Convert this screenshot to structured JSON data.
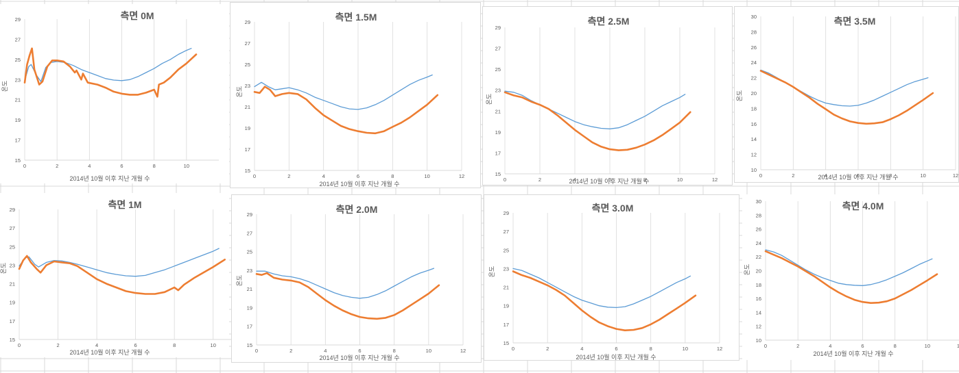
{
  "sheet": {
    "gridline_color": "#d9d9d9",
    "background": "#ffffff"
  },
  "colors": {
    "series_blue": "#5b9bd5",
    "series_orange": "#ed7d31",
    "text": "#595959",
    "grid": "#d9d9d9"
  },
  "chart_data": [
    {
      "type": "line",
      "title": "측면 0M",
      "xlabel": "2014년 10월 이후 지난 개월 수",
      "ylabel": "온도",
      "xlim": [
        0,
        12
      ],
      "ylim": [
        15,
        29
      ],
      "xticks": [
        0,
        2,
        4,
        6,
        8,
        10
      ],
      "yticks": [
        15,
        17,
        19,
        21,
        23,
        25,
        27,
        29
      ],
      "grid": true,
      "series": [
        {
          "color": "#5b9bd5",
          "x": [
            0,
            0.25,
            0.4,
            0.7,
            1.0,
            1.3,
            1.6,
            2.0,
            2.5,
            3.0,
            3.5,
            4.0,
            4.5,
            5.0,
            5.5,
            6.0,
            6.5,
            7.0,
            7.5,
            8.0,
            8.5,
            9.0,
            9.5,
            10.0,
            10.3
          ],
          "y": [
            22.9,
            24.3,
            24.5,
            23.5,
            22.8,
            24.2,
            24.7,
            24.8,
            24.7,
            24.4,
            24.0,
            23.7,
            23.4,
            23.1,
            22.95,
            22.9,
            23.0,
            23.3,
            23.7,
            24.1,
            24.6,
            25.0,
            25.5,
            25.9,
            26.1
          ]
        },
        {
          "color": "#ed7d31",
          "x": [
            0,
            0.15,
            0.3,
            0.45,
            0.6,
            0.9,
            1.1,
            1.4,
            1.7,
            2.0,
            2.4,
            2.8,
            3.1,
            3.2,
            3.5,
            3.6,
            3.9,
            4.5,
            5.0,
            5.5,
            6.0,
            6.5,
            7.0,
            7.5,
            8.0,
            8.2,
            8.3,
            8.6,
            9.0,
            9.5,
            10.0,
            10.6
          ],
          "y": [
            22.7,
            24.5,
            25.4,
            26.1,
            24.0,
            22.5,
            22.8,
            24.3,
            24.9,
            24.9,
            24.8,
            24.3,
            23.7,
            23.9,
            23.0,
            23.6,
            22.7,
            22.5,
            22.2,
            21.8,
            21.6,
            21.5,
            21.5,
            21.7,
            22.0,
            21.3,
            22.5,
            22.7,
            23.2,
            24.0,
            24.6,
            25.5
          ]
        }
      ]
    },
    {
      "type": "line",
      "title": "측면 1.5M",
      "xlabel": "2014년 10월 이후 지난 개월 수",
      "ylabel": "온도",
      "xlim": [
        0,
        12
      ],
      "ylim": [
        15,
        29
      ],
      "xticks": [
        0,
        2,
        4,
        6,
        8,
        10,
        12
      ],
      "yticks": [
        15,
        17,
        19,
        21,
        23,
        25,
        27,
        29
      ],
      "grid": true,
      "series": [
        {
          "color": "#5b9bd5",
          "x": [
            0,
            0.4,
            0.8,
            1.2,
            1.6,
            2.0,
            2.5,
            3.0,
            3.5,
            4.0,
            4.5,
            5.0,
            5.5,
            6.0,
            6.5,
            7.0,
            7.5,
            8.0,
            8.5,
            9.0,
            9.5,
            10.0,
            10.3
          ],
          "y": [
            22.9,
            23.3,
            22.9,
            22.6,
            22.7,
            22.8,
            22.6,
            22.3,
            21.9,
            21.6,
            21.3,
            21.0,
            20.8,
            20.75,
            20.9,
            21.2,
            21.6,
            22.1,
            22.6,
            23.1,
            23.5,
            23.8,
            24.0
          ]
        },
        {
          "color": "#ed7d31",
          "x": [
            0,
            0.3,
            0.6,
            0.9,
            1.2,
            1.6,
            2.0,
            2.5,
            3.0,
            3.5,
            4.0,
            4.5,
            5.0,
            5.5,
            6.0,
            6.5,
            7.0,
            7.5,
            8.0,
            8.5,
            9.0,
            9.5,
            10.0,
            10.6
          ],
          "y": [
            22.4,
            22.3,
            22.9,
            22.6,
            22.0,
            22.2,
            22.3,
            22.2,
            21.7,
            20.9,
            20.2,
            19.7,
            19.2,
            18.9,
            18.7,
            18.55,
            18.5,
            18.7,
            19.1,
            19.5,
            20.0,
            20.6,
            21.2,
            22.1
          ]
        }
      ]
    },
    {
      "type": "line",
      "title": "측면 2.5M",
      "xlabel": "2014년 10월 이후 지난 개월 수",
      "ylabel": "온도",
      "xlim": [
        0,
        12
      ],
      "ylim": [
        15,
        29
      ],
      "xticks": [
        0,
        2,
        4,
        6,
        8,
        10,
        12
      ],
      "yticks": [
        15,
        17,
        19,
        21,
        23,
        25,
        27,
        29
      ],
      "grid": true,
      "series": [
        {
          "color": "#5b9bd5",
          "x": [
            0,
            0.5,
            1.0,
            1.5,
            2.0,
            2.5,
            3.0,
            3.5,
            4.0,
            4.5,
            5.0,
            5.5,
            6.0,
            6.5,
            7.0,
            7.5,
            8.0,
            8.5,
            9.0,
            9.5,
            10.0,
            10.3
          ],
          "y": [
            22.9,
            22.8,
            22.5,
            22.0,
            21.6,
            21.2,
            20.8,
            20.4,
            20.0,
            19.7,
            19.5,
            19.35,
            19.3,
            19.4,
            19.7,
            20.1,
            20.5,
            21.0,
            21.5,
            21.9,
            22.3,
            22.6
          ]
        },
        {
          "color": "#ed7d31",
          "x": [
            0,
            0.5,
            1.0,
            1.5,
            2.0,
            2.5,
            3.0,
            3.5,
            4.0,
            4.5,
            5.0,
            5.5,
            6.0,
            6.5,
            7.0,
            7.5,
            8.0,
            8.5,
            9.0,
            9.5,
            10.0,
            10.6
          ],
          "y": [
            22.8,
            22.5,
            22.3,
            21.9,
            21.6,
            21.2,
            20.6,
            19.9,
            19.2,
            18.6,
            18.0,
            17.6,
            17.35,
            17.25,
            17.3,
            17.5,
            17.8,
            18.2,
            18.7,
            19.3,
            19.9,
            20.9
          ]
        }
      ]
    },
    {
      "type": "line",
      "title": "측면 3.5M",
      "xlabel": "2014년 10월 이후 지난 개월 수",
      "ylabel": "온도",
      "xlim": [
        0,
        12
      ],
      "ylim": [
        10,
        30
      ],
      "xticks": [
        0,
        2,
        4,
        6,
        8,
        10,
        12
      ],
      "yticks": [
        10,
        12,
        14,
        16,
        18,
        20,
        22,
        24,
        26,
        28,
        30
      ],
      "grid": true,
      "series": [
        {
          "color": "#5b9bd5",
          "x": [
            0,
            0.5,
            1.0,
            1.5,
            2.0,
            2.5,
            3.0,
            3.5,
            4.0,
            4.5,
            5.0,
            5.5,
            6.0,
            6.5,
            7.0,
            7.5,
            8.0,
            8.5,
            9.0,
            9.5,
            10.0,
            10.3
          ],
          "y": [
            23.0,
            22.6,
            22.0,
            21.4,
            20.8,
            20.2,
            19.6,
            19.1,
            18.7,
            18.5,
            18.35,
            18.3,
            18.4,
            18.7,
            19.1,
            19.6,
            20.1,
            20.6,
            21.1,
            21.5,
            21.8,
            22.0
          ]
        },
        {
          "color": "#ed7d31",
          "x": [
            0,
            0.5,
            1.0,
            1.5,
            2.0,
            2.5,
            3.0,
            3.5,
            4.0,
            4.5,
            5.0,
            5.5,
            6.0,
            6.5,
            7.0,
            7.5,
            8.0,
            8.5,
            9.0,
            9.5,
            10.0,
            10.6
          ],
          "y": [
            22.9,
            22.4,
            21.9,
            21.4,
            20.8,
            20.1,
            19.4,
            18.6,
            17.9,
            17.2,
            16.7,
            16.3,
            16.1,
            16.0,
            16.05,
            16.2,
            16.6,
            17.1,
            17.7,
            18.4,
            19.1,
            20.0
          ]
        }
      ]
    },
    {
      "type": "line",
      "title": "측면 1M",
      "xlabel": "2014년 10월 이후 지난 개월 수",
      "ylabel": "온도",
      "xlim": [
        0,
        11
      ],
      "ylim": [
        15,
        29
      ],
      "xticks": [
        0,
        2,
        4,
        6,
        8,
        10
      ],
      "yticks": [
        15,
        17,
        19,
        21,
        23,
        25,
        27,
        29
      ],
      "grid": true,
      "series": [
        {
          "color": "#5b9bd5",
          "x": [
            0,
            0.3,
            0.5,
            0.8,
            1.0,
            1.4,
            1.8,
            2.2,
            2.6,
            3.0,
            3.5,
            4.0,
            4.5,
            5.0,
            5.5,
            6.0,
            6.5,
            7.0,
            7.5,
            8.0,
            8.5,
            9.0,
            9.5,
            10.0,
            10.3
          ],
          "y": [
            22.9,
            23.8,
            23.9,
            23.1,
            22.8,
            23.3,
            23.5,
            23.45,
            23.3,
            23.1,
            22.8,
            22.5,
            22.2,
            22.0,
            21.85,
            21.8,
            21.9,
            22.2,
            22.5,
            22.9,
            23.3,
            23.7,
            24.1,
            24.5,
            24.8
          ]
        },
        {
          "color": "#ed7d31",
          "x": [
            0,
            0.2,
            0.4,
            0.6,
            0.9,
            1.1,
            1.4,
            1.8,
            2.2,
            2.6,
            3.0,
            3.5,
            4.0,
            4.5,
            5.0,
            5.5,
            6.0,
            6.5,
            7.0,
            7.5,
            8.0,
            8.2,
            8.5,
            9.0,
            9.5,
            10.0,
            10.6
          ],
          "y": [
            22.6,
            23.5,
            24.0,
            23.3,
            22.6,
            22.2,
            23.0,
            23.4,
            23.3,
            23.2,
            22.9,
            22.2,
            21.5,
            21.0,
            20.6,
            20.2,
            20.0,
            19.9,
            19.9,
            20.1,
            20.6,
            20.3,
            20.9,
            21.6,
            22.2,
            22.8,
            23.6
          ]
        }
      ]
    },
    {
      "type": "line",
      "title": "측면 2.0M",
      "xlabel": "2014년 10월 이후 지난 개월 수",
      "ylabel": "온도",
      "xlim": [
        0,
        12
      ],
      "ylim": [
        15,
        29
      ],
      "xticks": [
        0,
        2,
        4,
        6,
        8,
        10,
        12
      ],
      "yticks": [
        15,
        17,
        19,
        21,
        23,
        25,
        27,
        29
      ],
      "grid": true,
      "series": [
        {
          "color": "#5b9bd5",
          "x": [
            0,
            0.5,
            1.0,
            1.5,
            2.0,
            2.5,
            3.0,
            3.5,
            4.0,
            4.5,
            5.0,
            5.5,
            6.0,
            6.5,
            7.0,
            7.5,
            8.0,
            8.5,
            9.0,
            9.5,
            10.0,
            10.3
          ],
          "y": [
            22.9,
            22.9,
            22.6,
            22.4,
            22.3,
            22.1,
            21.8,
            21.4,
            21.0,
            20.6,
            20.3,
            20.1,
            20.0,
            20.1,
            20.4,
            20.8,
            21.3,
            21.8,
            22.3,
            22.7,
            23.0,
            23.2
          ]
        },
        {
          "color": "#ed7d31",
          "x": [
            0,
            0.3,
            0.6,
            1.0,
            1.5,
            2.0,
            2.5,
            3.0,
            3.5,
            4.0,
            4.5,
            5.0,
            5.5,
            6.0,
            6.5,
            7.0,
            7.5,
            8.0,
            8.5,
            9.0,
            9.5,
            10.0,
            10.6
          ],
          "y": [
            22.6,
            22.5,
            22.7,
            22.2,
            22.0,
            21.9,
            21.7,
            21.2,
            20.5,
            19.8,
            19.2,
            18.7,
            18.3,
            18.0,
            17.85,
            17.8,
            17.9,
            18.2,
            18.7,
            19.3,
            19.9,
            20.5,
            21.4
          ]
        }
      ]
    },
    {
      "type": "line",
      "title": "측면 3.0M",
      "xlabel": "2014년 10월 이후 지난 개월 수",
      "ylabel": "온도",
      "xlim": [
        0,
        12
      ],
      "ylim": [
        15,
        29
      ],
      "xticks": [
        0,
        2,
        4,
        6,
        8,
        10,
        12
      ],
      "yticks": [
        15,
        17,
        19,
        21,
        23,
        25,
        27,
        29
      ],
      "grid": true,
      "series": [
        {
          "color": "#5b9bd5",
          "x": [
            0,
            0.5,
            1.0,
            1.5,
            2.0,
            2.5,
            3.0,
            3.5,
            4.0,
            4.5,
            5.0,
            5.5,
            6.0,
            6.5,
            7.0,
            7.5,
            8.0,
            8.5,
            9.0,
            9.5,
            10.0,
            10.3
          ],
          "y": [
            23.0,
            22.8,
            22.4,
            22.0,
            21.5,
            21.0,
            20.5,
            20.0,
            19.6,
            19.3,
            19.0,
            18.85,
            18.8,
            18.9,
            19.2,
            19.6,
            20.0,
            20.5,
            21.0,
            21.5,
            21.9,
            22.2
          ]
        },
        {
          "color": "#ed7d31",
          "x": [
            0,
            0.5,
            1.0,
            1.5,
            2.0,
            2.5,
            3.0,
            3.5,
            4.0,
            4.5,
            5.0,
            5.5,
            6.0,
            6.5,
            7.0,
            7.5,
            8.0,
            8.5,
            9.0,
            9.5,
            10.0,
            10.6
          ],
          "y": [
            22.7,
            22.3,
            22.0,
            21.6,
            21.2,
            20.7,
            20.1,
            19.3,
            18.5,
            17.8,
            17.2,
            16.8,
            16.5,
            16.35,
            16.4,
            16.6,
            17.0,
            17.5,
            18.1,
            18.7,
            19.3,
            20.1
          ]
        }
      ]
    },
    {
      "type": "line",
      "title": "측면 4.0M",
      "xlabel": "2014년 10월 이후 지난 개월 수",
      "ylabel": "온도",
      "xlim": [
        0,
        12
      ],
      "ylim": [
        10,
        30
      ],
      "xticks": [
        0,
        2,
        4,
        6,
        8,
        10,
        12
      ],
      "yticks": [
        10,
        12,
        14,
        16,
        18,
        20,
        22,
        24,
        26,
        28,
        30
      ],
      "grid": true,
      "series": [
        {
          "color": "#5b9bd5",
          "x": [
            0,
            0.5,
            1.0,
            1.5,
            2.0,
            2.5,
            3.0,
            3.5,
            4.0,
            4.5,
            5.0,
            5.5,
            6.0,
            6.5,
            7.0,
            7.5,
            8.0,
            8.5,
            9.0,
            9.5,
            10.0,
            10.3
          ],
          "y": [
            23.0,
            22.7,
            22.2,
            21.5,
            20.8,
            20.1,
            19.5,
            19.0,
            18.6,
            18.2,
            18.0,
            17.9,
            17.85,
            18.0,
            18.3,
            18.7,
            19.2,
            19.7,
            20.3,
            20.9,
            21.4,
            21.7
          ]
        },
        {
          "color": "#ed7d31",
          "x": [
            0,
            0.5,
            1.0,
            1.5,
            2.0,
            2.5,
            3.0,
            3.5,
            4.0,
            4.5,
            5.0,
            5.5,
            6.0,
            6.5,
            7.0,
            7.5,
            8.0,
            8.5,
            9.0,
            9.5,
            10.0,
            10.6
          ],
          "y": [
            22.8,
            22.3,
            21.8,
            21.2,
            20.6,
            19.9,
            19.2,
            18.4,
            17.6,
            16.9,
            16.3,
            15.8,
            15.5,
            15.35,
            15.4,
            15.6,
            16.0,
            16.6,
            17.2,
            17.9,
            18.6,
            19.5
          ]
        }
      ]
    }
  ]
}
